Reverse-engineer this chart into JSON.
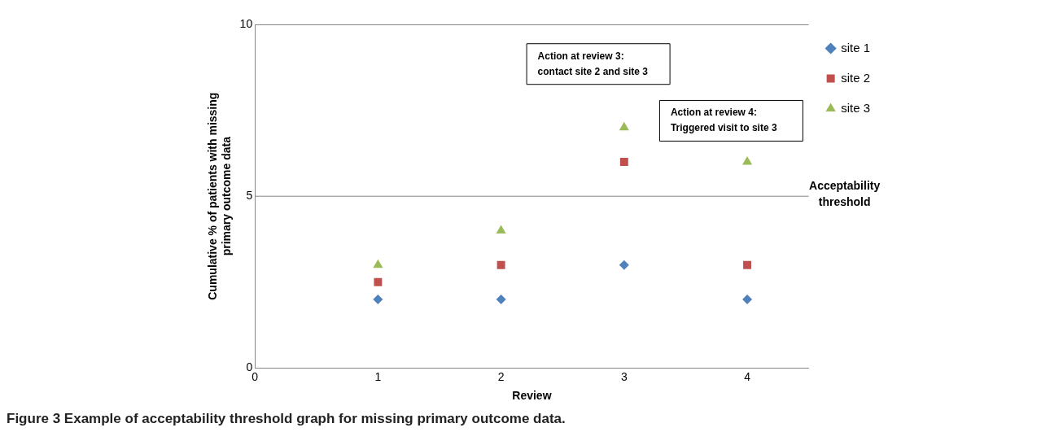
{
  "chart_data": {
    "type": "scatter",
    "title": "Figure 3 Example of acceptability threshold graph for missing primary outcome data.",
    "xlabel": "Review",
    "ylabel": "Cumulative % of patients with missing primary outcome data",
    "x": [
      1,
      2,
      3,
      4
    ],
    "series": [
      {
        "name": "site 1",
        "color": "#4f81bd",
        "marker": "diamond",
        "values": [
          2,
          2,
          3,
          2
        ]
      },
      {
        "name": "site 2",
        "color": "#c0504d",
        "marker": "square",
        "values": [
          2.5,
          3,
          6,
          3
        ]
      },
      {
        "name": "site 3",
        "color": "#9bbb59",
        "marker": "triangle",
        "values": [
          3,
          4,
          7,
          6
        ]
      }
    ],
    "xlim": [
      0,
      4.5
    ],
    "xticks": [
      0,
      1,
      2,
      3,
      4
    ],
    "ylim": [
      0,
      10
    ],
    "yticks": [
      0,
      5,
      10
    ],
    "legend": "top right",
    "ref_lines": [
      {
        "axis": "y",
        "value": 5,
        "label": "Acceptability threshold"
      }
    ],
    "annotations": [
      "Action at review 3:\ncontact site 2 and site 3",
      "Action at review 4:\nTriggered visit to site 3"
    ]
  }
}
